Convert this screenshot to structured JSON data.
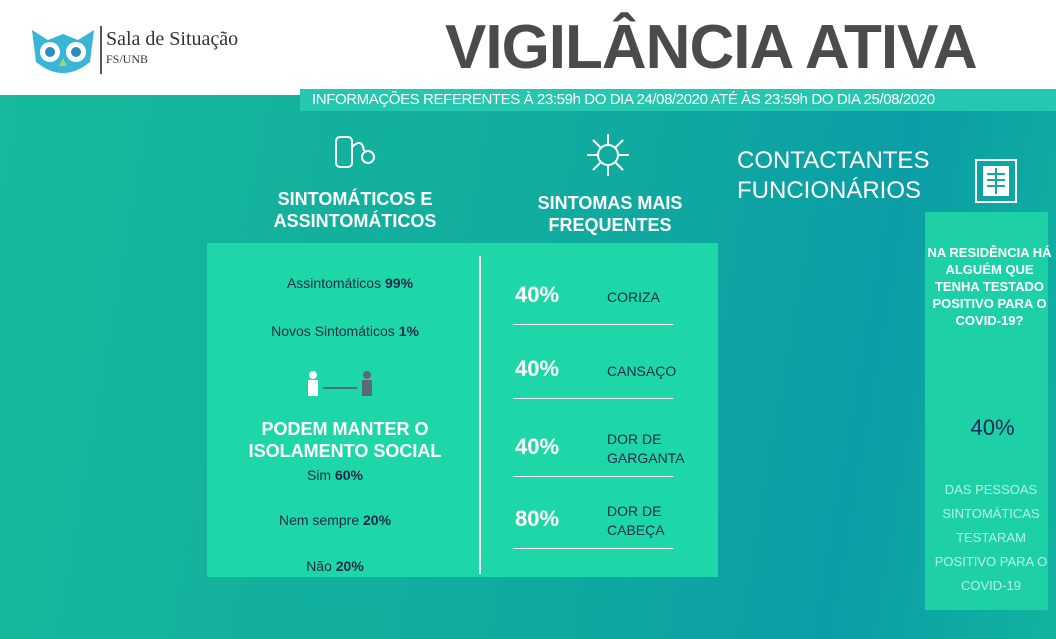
{
  "header": {
    "logo_title": "Sala de Situação",
    "logo_subtitle": "FS/UNB",
    "title": "VIGILÂNCIA ATIVA",
    "banner": "INFORMAÇÕES REFERENTES À 23:59h DO DIA 24/08/2020 ATÉ ÀS 23:59h DO DIA 25/08/2020"
  },
  "left": {
    "heading": "SINTOMÁTICOS E ASSINTOMÁTICOS",
    "items": [
      {
        "label": "Assintomáticos",
        "value": "99%"
      },
      {
        "label": "Novos Sintomáticos",
        "value": "1%"
      }
    ],
    "isolation": {
      "heading": "PODEM MANTER O ISOLAMENTO SOCIAL",
      "items": [
        {
          "label": "Sim",
          "value": "60%"
        },
        {
          "label": "Nem sempre",
          "value": "20%"
        },
        {
          "label": "Não",
          "value": "20%"
        }
      ]
    }
  },
  "symptoms": {
    "heading": "SINTOMAS MAIS FREQUENTES",
    "items": [
      {
        "value": "40%",
        "label": "CORIZA"
      },
      {
        "value": "40%",
        "label": "CANSAÇO"
      },
      {
        "value": "40%",
        "label": "DOR DE GARGANTA"
      },
      {
        "value": "80%",
        "label": "DOR DE CABEÇA"
      }
    ]
  },
  "right": {
    "heading": "CONTACTANTES FUNCIONÁRIOS",
    "question": "NA RESIDÊNCIA HÁ ALGUÉM QUE TENHA TESTADO POSITIVO PARA O COVID-19?",
    "value": "40%",
    "note": "DAS PESSOAS SINTOMÁTICAS TESTARAM POSITIVO PARA O COVID-19"
  }
}
